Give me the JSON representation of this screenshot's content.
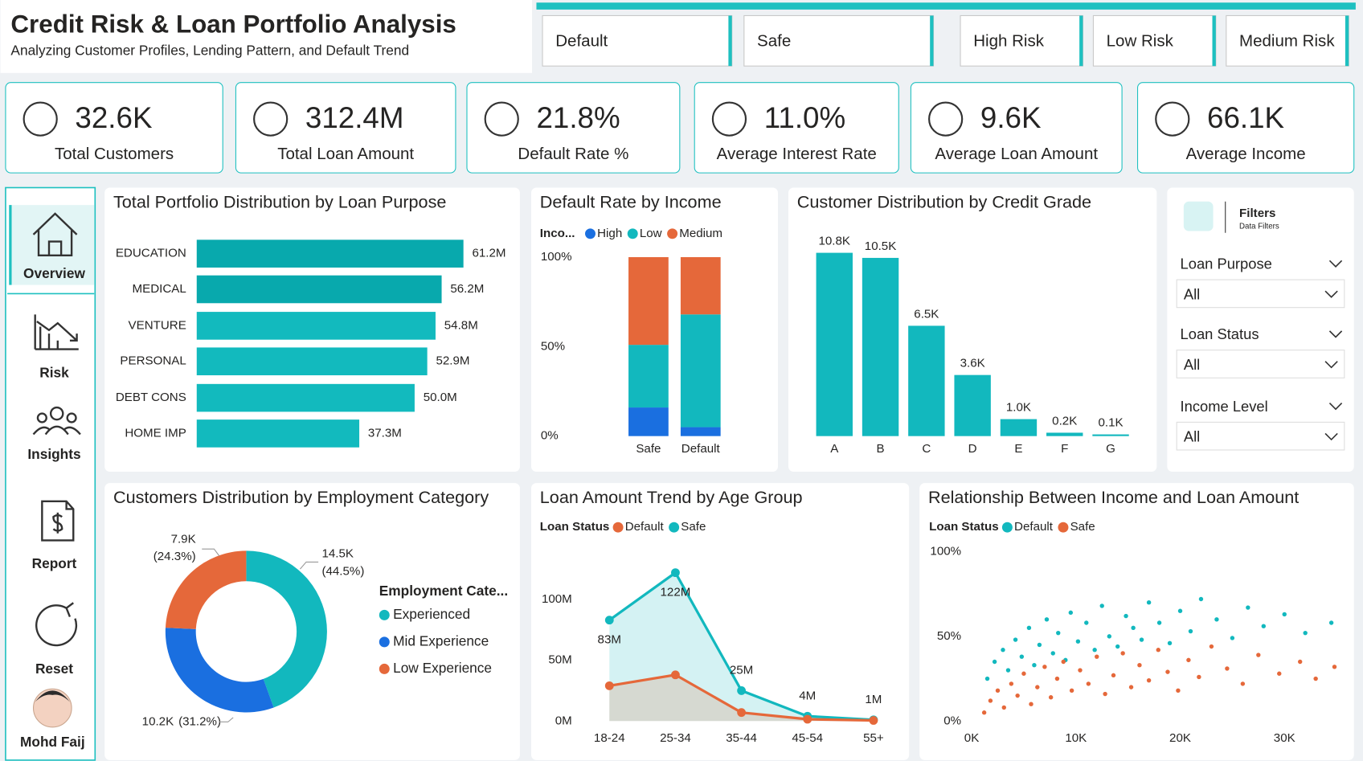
{
  "header": {
    "title": "Credit Risk & Loan Portfolio Analysis",
    "subtitle": "Analyzing Customer Profiles, Lending Pattern, and Default Trend"
  },
  "buttons": [
    "Default",
    "Safe",
    "High Risk",
    "Low Risk",
    "Medium Risk"
  ],
  "kpis": [
    {
      "value": "32.6K",
      "label": "Total Customers"
    },
    {
      "value": "312.4M",
      "label": "Total Loan Amount"
    },
    {
      "value": "21.8%",
      "label": "Default Rate %"
    },
    {
      "value": "11.0%",
      "label": "Average Interest Rate"
    },
    {
      "value": "9.6K",
      "label": "Average Loan Amount"
    },
    {
      "value": "66.1K",
      "label": "Average Income"
    }
  ],
  "nav": {
    "items": [
      "Overview",
      "Risk",
      "Insights",
      "Report",
      "Reset"
    ],
    "user": "Mohd Faij"
  },
  "filters": {
    "title": "Filters",
    "subtitle": "Data Filters",
    "items": [
      {
        "label": "Loan Purpose",
        "value": "All"
      },
      {
        "label": "Loan Status",
        "value": "All"
      },
      {
        "label": "Income Level",
        "value": "All"
      }
    ]
  },
  "chart_data": [
    {
      "type": "hbar",
      "title": "Total Portfolio Distribution by Loan Purpose",
      "categories": [
        "EDUCATION",
        "MEDICAL",
        "VENTURE",
        "PERSONAL",
        "DEBT CONS",
        "HOME IMP"
      ],
      "values": [
        61.2,
        56.2,
        54.8,
        52.9,
        50.0,
        37.3
      ],
      "value_labels": [
        "61.2M",
        "56.2M",
        "54.8M",
        "52.9M",
        "50.0M",
        "37.3M"
      ],
      "colors": [
        "#08a9ad",
        "#08a9ad",
        "#12babe",
        "#12babe",
        "#12babe",
        "#12babe"
      ]
    },
    {
      "type": "stacked_bar",
      "title": "Default Rate by Income",
      "legend_title": "Inco...",
      "categories": [
        "Safe",
        "Default"
      ],
      "series": [
        {
          "name": "High",
          "color": "#1a6fe0",
          "values": [
            16,
            5
          ]
        },
        {
          "name": "Low",
          "color": "#12b8be",
          "values": [
            35,
            63
          ]
        },
        {
          "name": "Medium",
          "color": "#e5683a",
          "values": [
            49,
            32
          ]
        }
      ],
      "ylim": [
        0,
        100
      ],
      "yticks": [
        {
          "value": 0,
          "label": "0%"
        },
        {
          "value": 50,
          "label": "50%"
        },
        {
          "value": 100,
          "label": "100%"
        }
      ]
    },
    {
      "type": "bar",
      "title": "Customer Distribution by Credit Grade",
      "categories": [
        "A",
        "B",
        "C",
        "D",
        "E",
        "F",
        "G"
      ],
      "values": [
        10.8,
        10.5,
        6.5,
        3.6,
        1.0,
        0.2,
        0.1
      ],
      "value_labels": [
        "10.8K",
        "10.5K",
        "6.5K",
        "3.6K",
        "1.0K",
        "0.2K",
        "0.1K"
      ],
      "color": "#12b8be"
    },
    {
      "type": "donut",
      "title": "Customers Distribution by Employment Category",
      "legend_title": "Employment Cate...",
      "categories": [
        "Experienced",
        "Mid Experience",
        "Low Experience"
      ],
      "values": [
        14.5,
        10.2,
        7.9
      ],
      "value_labels": [
        "14.5K",
        "10.2K",
        "7.9K"
      ],
      "percent_labels": [
        "(44.5%)",
        "(31.2%)",
        "(24.3%)"
      ],
      "colors": [
        "#12b8be",
        "#1a6fe0",
        "#e5683a"
      ]
    },
    {
      "type": "line",
      "title": "Loan Amount Trend by Age Group",
      "legend_title": "Loan Status",
      "categories": [
        "18-24",
        "25-34",
        "35-44",
        "45-54",
        "55+"
      ],
      "series": [
        {
          "name": "Default",
          "color": "#e5683a",
          "values": [
            29,
            38,
            7,
            1.5,
            0.5
          ]
        },
        {
          "name": "Safe",
          "color": "#12b8be",
          "values": [
            83,
            122,
            25,
            4,
            1
          ],
          "value_labels": [
            "83M",
            "122M",
            "25M",
            "4M",
            "1M"
          ]
        }
      ],
      "ylim": [
        0,
        135
      ],
      "yticks": [
        {
          "value": 0,
          "label": "0M"
        },
        {
          "value": 50,
          "label": "50M"
        },
        {
          "value": 100,
          "label": "100M"
        }
      ]
    },
    {
      "type": "scatter",
      "title": "Relationship Between Income and Loan Amount",
      "legend_title": "Loan Status",
      "series": [
        {
          "name": "Default",
          "color": "#12b8be",
          "x": [
            1500,
            2200,
            3000,
            3500,
            4200,
            4800,
            5500,
            6000,
            6500,
            7200,
            7800,
            8300,
            9000,
            9500,
            10200,
            11000,
            11800,
            12500,
            13200,
            14000,
            14800,
            15500,
            16300,
            17000,
            18000,
            19000,
            20000,
            21000,
            22000,
            23500,
            25000,
            26500,
            28000,
            30000,
            32000,
            34500
          ],
          "y": [
            25,
            35,
            42,
            30,
            48,
            38,
            55,
            33,
            45,
            60,
            40,
            52,
            36,
            64,
            47,
            58,
            42,
            68,
            50,
            44,
            62,
            55,
            48,
            70,
            58,
            46,
            65,
            53,
            72,
            60,
            49,
            67,
            56,
            63,
            52,
            58
          ]
        },
        {
          "name": "Safe",
          "color": "#e5683a",
          "x": [
            1200,
            1800,
            2500,
            3100,
            3800,
            4400,
            5000,
            5700,
            6300,
            7000,
            7600,
            8200,
            8800,
            9600,
            10400,
            11200,
            12000,
            12800,
            13600,
            14500,
            15300,
            16100,
            17000,
            17900,
            18800,
            19800,
            20800,
            21800,
            23000,
            24500,
            26000,
            27500,
            29500,
            31500,
            33000,
            34800
          ],
          "y": [
            5,
            12,
            18,
            8,
            22,
            15,
            28,
            10,
            20,
            32,
            14,
            25,
            35,
            18,
            30,
            22,
            38,
            16,
            27,
            40,
            20,
            33,
            24,
            42,
            29,
            18,
            36,
            26,
            44,
            31,
            22,
            39,
            28,
            35,
            25,
            32
          ]
        }
      ],
      "xlim": [
        0,
        35000
      ],
      "xticks": [
        {
          "value": 0,
          "label": "0K"
        },
        {
          "value": 10000,
          "label": "10K"
        },
        {
          "value": 20000,
          "label": "20K"
        },
        {
          "value": 30000,
          "label": "30K"
        }
      ],
      "ylim": [
        0,
        100
      ],
      "yticks": [
        {
          "value": 0,
          "label": "0%"
        },
        {
          "value": 50,
          "label": "50%"
        },
        {
          "value": 100,
          "label": "100%"
        }
      ]
    }
  ]
}
